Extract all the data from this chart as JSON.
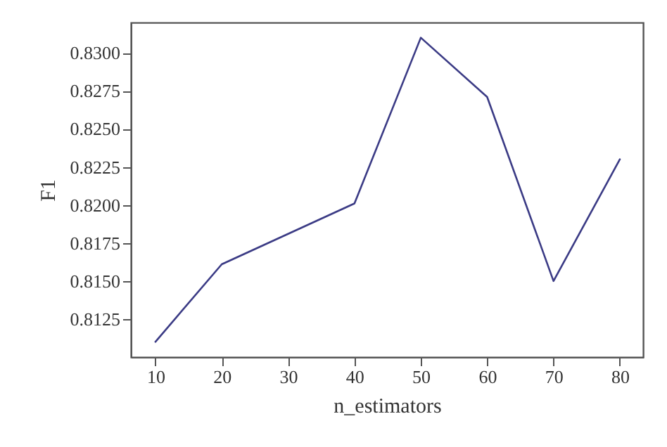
{
  "chart_data": {
    "type": "line",
    "xlabel": "n_estimators",
    "ylabel": "F1",
    "x": [
      10,
      20,
      30,
      40,
      50,
      60,
      70,
      80
    ],
    "series": [
      {
        "color": "#3b3b85",
        "values": [
          0.811,
          0.8161,
          0.8181,
          0.8201,
          0.831,
          0.8271,
          0.815,
          0.823
        ]
      }
    ],
    "xlim": [
      6.3,
      83.5
    ],
    "xticks": [
      10,
      20,
      30,
      40,
      50,
      60,
      70,
      80
    ],
    "ylim": [
      0.81,
      0.832
    ],
    "yticks": [
      0.8125,
      {
        "value": 0.815,
        "label": "0.8150"
      },
      0.8175,
      {
        "value": 0.82,
        "label": "0.8200"
      },
      0.8225,
      {
        "value": 0.825,
        "label": "0.8250"
      },
      0.8275,
      {
        "value": 0.83,
        "label": "0.8300"
      }
    ],
    "grid": false,
    "line_style": "solid"
  }
}
